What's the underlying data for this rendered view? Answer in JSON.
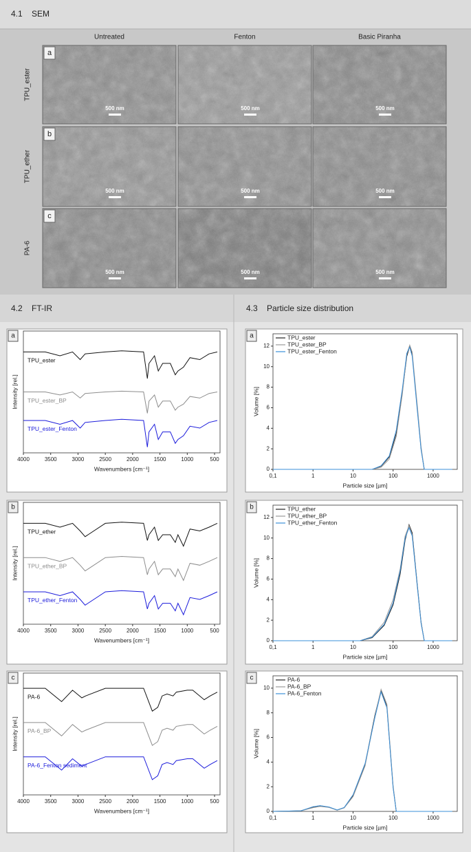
{
  "sections": [
    {
      "number": "4.1",
      "title": "SEM"
    },
    {
      "number": "4.2",
      "title": "FT-IR"
    },
    {
      "number": "4.3",
      "title": "Particle size distribution"
    }
  ],
  "sem": {
    "columns": [
      "Untreated",
      "Fenton",
      "Basic Piranha"
    ],
    "rows": [
      {
        "letter": "a",
        "label": "TPU_ester"
      },
      {
        "letter": "b",
        "label": "TPU_ether"
      },
      {
        "letter": "c",
        "label": "PA-6"
      }
    ],
    "scale_bar": "500 nm"
  },
  "chart_data": [
    {
      "type": "line",
      "panel": "a",
      "xlabel": "Wavenumbers [cm⁻¹]",
      "ylabel": "Intensity [rel.]",
      "legend": "inline",
      "x": [
        4000,
        3600,
        3330,
        3100,
        2960,
        2870,
        2500,
        2200,
        1800,
        1730,
        1700,
        1600,
        1530,
        1450,
        1310,
        1220,
        1170,
        1070,
        950,
        770,
        600,
        450
      ],
      "xlim": [
        4000,
        400
      ],
      "xticks": [
        4000,
        3500,
        3000,
        2500,
        2000,
        1500,
        1000,
        500
      ],
      "ylim": [
        0,
        3.2
      ],
      "series": [
        {
          "name": "TPU_ester",
          "color": "#111111",
          "values": [
            2.65,
            2.65,
            2.55,
            2.65,
            2.45,
            2.6,
            2.65,
            2.68,
            2.65,
            1.95,
            2.35,
            2.55,
            2.15,
            2.35,
            2.35,
            2.05,
            2.15,
            2.25,
            2.5,
            2.45,
            2.6,
            2.65
          ]
        },
        {
          "name": "TPU_ester_BP",
          "color": "#8c8c8c",
          "values": [
            1.6,
            1.6,
            1.52,
            1.6,
            1.44,
            1.56,
            1.6,
            1.62,
            1.6,
            1.04,
            1.36,
            1.52,
            1.2,
            1.36,
            1.36,
            1.12,
            1.2,
            1.28,
            1.48,
            1.44,
            1.56,
            1.6
          ]
        },
        {
          "name": "TPU_ester_Fenton",
          "color": "#1a1adb",
          "values": [
            0.85,
            0.85,
            0.75,
            0.85,
            0.65,
            0.8,
            0.85,
            0.88,
            0.85,
            0.15,
            0.55,
            0.75,
            0.35,
            0.55,
            0.55,
            0.25,
            0.35,
            0.45,
            0.7,
            0.65,
            0.8,
            0.85
          ]
        }
      ]
    },
    {
      "type": "line",
      "panel": "b",
      "xlabel": "Wavenumbers [cm⁻¹]",
      "ylabel": "Intensity [rel.]",
      "legend": "inline",
      "x": [
        4000,
        3600,
        3330,
        3100,
        2960,
        2870,
        2500,
        2200,
        1800,
        1730,
        1700,
        1600,
        1530,
        1450,
        1310,
        1220,
        1170,
        1070,
        950,
        770,
        600,
        450
      ],
      "xlim": [
        4000,
        400
      ],
      "xticks": [
        4000,
        3500,
        3000,
        2500,
        2000,
        1500,
        1000,
        500
      ],
      "ylim": [
        0,
        3.2
      ],
      "series": [
        {
          "name": "TPU_ether",
          "color": "#111111",
          "values": [
            2.65,
            2.65,
            2.55,
            2.65,
            2.45,
            2.3,
            2.65,
            2.68,
            2.65,
            2.2,
            2.35,
            2.55,
            2.2,
            2.35,
            2.35,
            2.15,
            2.35,
            2.05,
            2.5,
            2.45,
            2.55,
            2.65
          ]
        },
        {
          "name": "TPU_ether_BP",
          "color": "#8c8c8c",
          "values": [
            1.75,
            1.75,
            1.65,
            1.75,
            1.55,
            1.4,
            1.75,
            1.78,
            1.75,
            1.3,
            1.45,
            1.65,
            1.3,
            1.45,
            1.45,
            1.25,
            1.45,
            1.15,
            1.6,
            1.55,
            1.65,
            1.75
          ]
        },
        {
          "name": "TPU_ether_Fenton",
          "color": "#1a1adb",
          "values": [
            0.85,
            0.85,
            0.75,
            0.85,
            0.65,
            0.5,
            0.85,
            0.88,
            0.85,
            0.4,
            0.55,
            0.75,
            0.4,
            0.55,
            0.55,
            0.35,
            0.55,
            0.25,
            0.7,
            0.65,
            0.75,
            0.85
          ]
        }
      ]
    },
    {
      "type": "line",
      "panel": "c",
      "xlabel": "Wavenumbers [cm⁻¹]",
      "ylabel": "Intensity [rel.]",
      "legend": "inline",
      "x": [
        4000,
        3600,
        3300,
        3100,
        2930,
        2860,
        2500,
        2200,
        1800,
        1640,
        1540,
        1460,
        1370,
        1260,
        1200,
        1000,
        900,
        690,
        580,
        450
      ],
      "xlim": [
        4000,
        400
      ],
      "xticks": [
        4000,
        3500,
        3000,
        2500,
        2000,
        1500,
        1000,
        500
      ],
      "ylim": [
        0,
        3.2
      ],
      "series": [
        {
          "name": "PA-6",
          "color": "#111111",
          "values": [
            2.8,
            2.8,
            2.45,
            2.75,
            2.55,
            2.6,
            2.8,
            2.8,
            2.8,
            2.2,
            2.3,
            2.6,
            2.65,
            2.6,
            2.7,
            2.75,
            2.75,
            2.5,
            2.6,
            2.7
          ]
        },
        {
          "name": "PA-6_BP",
          "color": "#8c8c8c",
          "values": [
            1.9,
            1.9,
            1.55,
            1.85,
            1.65,
            1.7,
            1.9,
            1.9,
            1.9,
            1.3,
            1.4,
            1.7,
            1.75,
            1.7,
            1.8,
            1.85,
            1.85,
            1.6,
            1.7,
            1.8
          ]
        },
        {
          "name": "PA-6_Fenton sediment",
          "color": "#1a1adb",
          "values": [
            1.0,
            1.0,
            0.65,
            0.95,
            0.75,
            0.8,
            1.0,
            1.0,
            1.0,
            0.4,
            0.5,
            0.8,
            0.85,
            0.8,
            0.9,
            0.95,
            0.95,
            0.7,
            0.8,
            0.9
          ]
        }
      ]
    },
    {
      "type": "line",
      "panel": "a",
      "xlabel": "Particle size [µm]",
      "ylabel": "Volume [%]",
      "legend": "upper left",
      "xscale": "log",
      "x": [
        0.1,
        30,
        50,
        80,
        120,
        170,
        220,
        260,
        300,
        400,
        500,
        600,
        3000
      ],
      "xlim": [
        0.1,
        4000
      ],
      "xticks": [
        {
          "value": 0.1,
          "label": "0,1"
        },
        1,
        10,
        100,
        1000
      ],
      "ylim": [
        0,
        13.2
      ],
      "yticks": [
        0,
        2,
        4,
        6,
        8,
        10,
        12
      ],
      "series": [
        {
          "name": "TPU_ester",
          "color": "#222222",
          "values": [
            0,
            0,
            0.3,
            1.2,
            3.5,
            7.5,
            11,
            12,
            11.2,
            6,
            2,
            0,
            0
          ]
        },
        {
          "name": "TPU_ester_BP",
          "color": "#999999",
          "values": [
            0,
            0,
            0.2,
            1,
            3.2,
            7.3,
            11.2,
            12.1,
            11.4,
            6.3,
            2.2,
            0,
            0
          ]
        },
        {
          "name": "TPU_ester_Fenton",
          "color": "#3a8fd8",
          "values": [
            0,
            0,
            0.35,
            1.3,
            3.8,
            7.8,
            11.3,
            11.9,
            11,
            5.8,
            1.9,
            0,
            0
          ]
        }
      ]
    },
    {
      "type": "line",
      "panel": "b",
      "xlabel": "Particle size [µm]",
      "ylabel": "Volume [%]",
      "legend": "upper left",
      "xscale": "log",
      "x": [
        0.1,
        15,
        30,
        60,
        100,
        150,
        200,
        250,
        300,
        400,
        500,
        600,
        3000
      ],
      "xlim": [
        0.1,
        4000
      ],
      "xticks": [
        {
          "value": 0.1,
          "label": "0,1"
        },
        1,
        10,
        100,
        1000
      ],
      "ylim": [
        0,
        13.2
      ],
      "yticks": [
        0,
        2,
        4,
        6,
        8,
        10,
        12
      ],
      "series": [
        {
          "name": "TPU_ether",
          "color": "#222222",
          "values": [
            0,
            0,
            0.3,
            1.5,
            3.5,
            6.5,
            9.8,
            11.3,
            10.5,
            5.5,
            1.8,
            0,
            0
          ]
        },
        {
          "name": "TPU_ether_BP",
          "color": "#999999",
          "values": [
            0,
            0,
            0.4,
            1.8,
            4,
            7,
            10.2,
            11.2,
            10.3,
            5.3,
            1.7,
            0,
            0
          ]
        },
        {
          "name": "TPU_ether_Fenton",
          "color": "#3a8fd8",
          "values": [
            0,
            0,
            0.35,
            1.6,
            3.7,
            6.8,
            10,
            11,
            10.2,
            5.4,
            1.7,
            0,
            0
          ]
        }
      ]
    },
    {
      "type": "line",
      "panel": "c",
      "xlabel": "Particle size [µm]",
      "ylabel": "Volume [%]",
      "legend": "upper left",
      "xscale": "log",
      "x": [
        0.1,
        0.5,
        1,
        1.5,
        2.5,
        4,
        6,
        10,
        20,
        35,
        50,
        70,
        100,
        120,
        3000
      ],
      "xlim": [
        0.1,
        4000
      ],
      "xticks": [
        {
          "value": 0.1,
          "label": "0,1"
        },
        1,
        10,
        100,
        1000
      ],
      "ylim": [
        0,
        11
      ],
      "yticks": [
        0,
        2,
        4,
        6,
        8,
        10
      ],
      "series": [
        {
          "name": "PA-6",
          "color": "#222222",
          "values": [
            0,
            0.05,
            0.35,
            0.45,
            0.35,
            0.1,
            0.3,
            1.3,
            3.8,
            7.8,
            9.8,
            8.5,
            2,
            0,
            0
          ]
        },
        {
          "name": "PA-6_BP",
          "color": "#999999",
          "values": [
            0,
            0.04,
            0.3,
            0.4,
            0.32,
            0.1,
            0.28,
            1.2,
            3.7,
            7.7,
            9.9,
            8.7,
            2.1,
            0,
            0
          ]
        },
        {
          "name": "PA-6_Fenton",
          "color": "#3a8fd8",
          "values": [
            0,
            0.05,
            0.38,
            0.47,
            0.36,
            0.12,
            0.32,
            1.35,
            3.9,
            7.6,
            9.7,
            8.4,
            1.9,
            0,
            0
          ]
        }
      ]
    }
  ]
}
